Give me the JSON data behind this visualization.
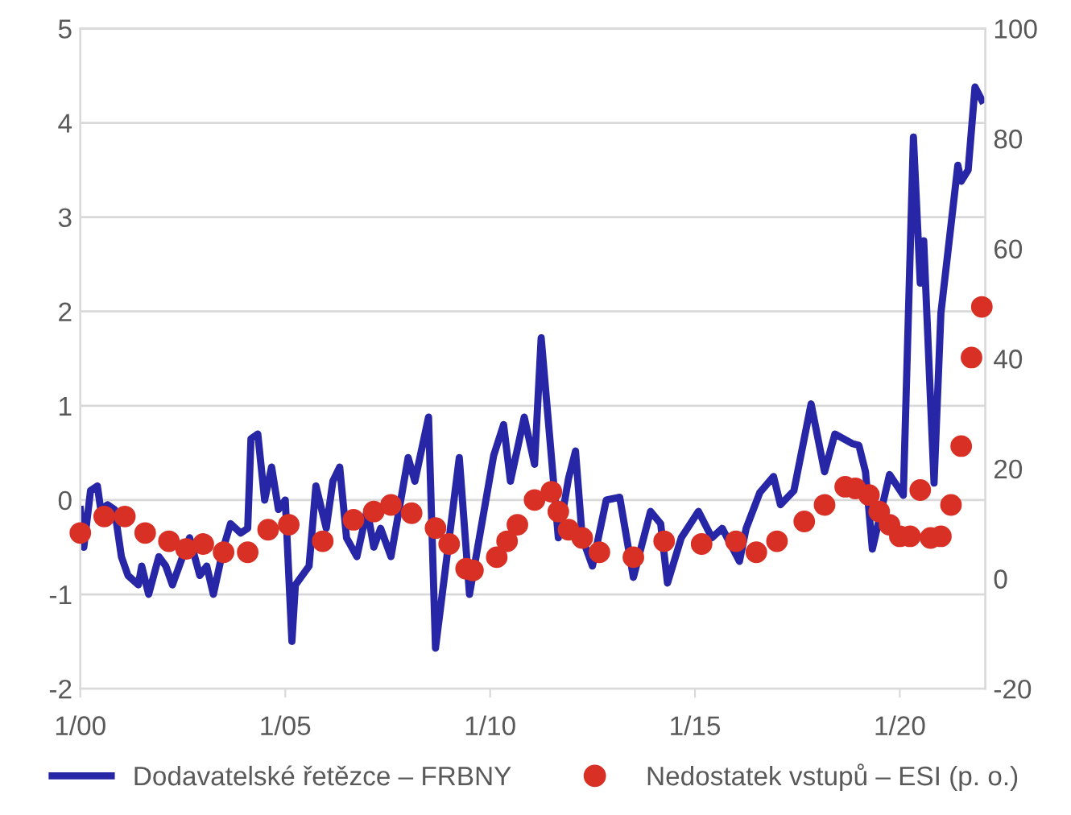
{
  "chart_data": {
    "type": "line",
    "xlim": [
      "2000-01",
      "2022-02"
    ],
    "xticks": [
      {
        "value": "2000-01",
        "label": "1/00"
      },
      {
        "value": "2005-01",
        "label": "1/05"
      },
      {
        "value": "2010-01",
        "label": "1/10"
      },
      {
        "value": "2015-01",
        "label": "1/15"
      },
      {
        "value": "2020-01",
        "label": "1/20"
      }
    ],
    "ylim": [
      -2,
      5
    ],
    "yticks": [
      -2,
      -1,
      0,
      1,
      2,
      3,
      4,
      5
    ],
    "y2lim": [
      -20,
      100
    ],
    "y2ticks": [
      -20,
      0,
      20,
      40,
      60,
      80,
      100
    ],
    "grid": "y",
    "legend": "bottom",
    "series": [
      {
        "name": "Dodavatelské řetězce – FRBNY",
        "color": "#2626a6",
        "line_style": "solid",
        "marker": "none",
        "x": [
          "2000-01",
          "2000-02",
          "2000-04",
          "2000-06",
          "2000-07",
          "2000-09",
          "2000-11",
          "2001-01",
          "2001-03",
          "2001-06",
          "2001-07",
          "2001-09",
          "2001-12",
          "2002-02",
          "2002-04",
          "2002-07",
          "2002-09",
          "2002-12",
          "2003-02",
          "2003-04",
          "2003-07",
          "2003-09",
          "2003-12",
          "2004-02",
          "2004-03",
          "2004-05",
          "2004-07",
          "2004-09",
          "2004-11",
          "2005-01",
          "2005-03",
          "2005-04",
          "2005-08",
          "2005-10",
          "2006-01",
          "2006-03",
          "2006-05",
          "2006-07",
          "2006-10",
          "2007-01",
          "2007-03",
          "2007-05",
          "2007-08",
          "2008-01",
          "2008-03",
          "2008-07",
          "2008-09",
          "2009-04",
          "2009-07",
          "2010-02",
          "2010-05",
          "2010-07",
          "2010-11",
          "2011-02",
          "2011-04",
          "2011-09",
          "2011-12",
          "2012-02",
          "2012-04",
          "2012-07",
          "2012-11",
          "2013-03",
          "2013-07",
          "2013-12",
          "2014-03",
          "2014-05",
          "2014-09",
          "2015-02",
          "2015-06",
          "2015-09",
          "2016-02",
          "2016-04",
          "2016-08",
          "2016-12",
          "2017-02",
          "2017-06",
          "2017-11",
          "2018-03",
          "2018-06",
          "2018-11",
          "2019-01",
          "2019-03",
          "2019-05",
          "2019-10",
          "2020-02",
          "2020-05",
          "2020-07",
          "2020-08",
          "2020-11",
          "2021-01",
          "2021-06",
          "2021-07",
          "2021-09",
          "2021-11",
          "2022-01"
        ],
        "values": [
          -0.1,
          -0.5,
          0.1,
          0.15,
          -0.1,
          -0.05,
          -0.1,
          -0.6,
          -0.8,
          -0.9,
          -0.7,
          -1.0,
          -0.6,
          -0.7,
          -0.9,
          -0.6,
          -0.4,
          -0.8,
          -0.7,
          -1.0,
          -0.5,
          -0.25,
          -0.35,
          -0.3,
          0.65,
          0.7,
          0.0,
          0.35,
          -0.1,
          0.0,
          -1.5,
          -0.9,
          -0.7,
          0.15,
          -0.3,
          0.2,
          0.35,
          -0.4,
          -0.6,
          -0.1,
          -0.5,
          -0.3,
          -0.6,
          0.45,
          0.2,
          0.88,
          -1.57,
          0.45,
          -1.0,
          0.47,
          0.8,
          0.2,
          0.88,
          0.38,
          1.72,
          -0.4,
          0.23,
          0.52,
          -0.4,
          -0.7,
          0.0,
          0.03,
          -0.82,
          -0.12,
          -0.25,
          -0.88,
          -0.4,
          -0.12,
          -0.4,
          -0.3,
          -0.65,
          -0.3,
          0.08,
          0.25,
          -0.05,
          0.1,
          1.02,
          0.3,
          0.7,
          0.6,
          0.58,
          0.3,
          -0.52,
          0.27,
          0.05,
          3.85,
          2.3,
          2.75,
          0.18,
          1.98,
          3.55,
          3.38,
          3.5,
          4.38,
          4.24
        ]
      },
      {
        "name": "Nedostatek vstupů – ESI (p. o.)",
        "type": "scatter",
        "axis": "y2",
        "color": "#d93025",
        "marker": "circle",
        "x": [
          "2000-01",
          "2000-08",
          "2001-02",
          "2001-08",
          "2002-03",
          "2002-08",
          "2003-01",
          "2003-07",
          "2004-02",
          "2004-08",
          "2005-02",
          "2005-12",
          "2006-09",
          "2007-03",
          "2007-08",
          "2008-02",
          "2008-09",
          "2009-01",
          "2009-06",
          "2009-08",
          "2010-03",
          "2010-06",
          "2010-09",
          "2011-02",
          "2011-07",
          "2011-09",
          "2011-12",
          "2012-04",
          "2012-09",
          "2013-07",
          "2014-04",
          "2015-03",
          "2016-01",
          "2016-07",
          "2017-01",
          "2017-09",
          "2018-03",
          "2018-09",
          "2018-12",
          "2019-04",
          "2019-07",
          "2019-10",
          "2020-01",
          "2020-04",
          "2020-07",
          "2020-10",
          "2021-01",
          "2021-04",
          "2021-07",
          "2021-10",
          "2022-01"
        ],
        "values": [
          8.3,
          11.3,
          11.3,
          8.3,
          6.8,
          5.4,
          6.3,
          4.8,
          4.8,
          8.9,
          9.8,
          6.8,
          10.7,
          12.2,
          13.4,
          11.9,
          9.2,
          6.3,
          1.8,
          1.5,
          3.9,
          6.8,
          9.8,
          14.3,
          15.8,
          12.2,
          8.9,
          7.4,
          4.8,
          3.9,
          6.8,
          6.3,
          6.8,
          4.8,
          6.8,
          10.4,
          13.4,
          16.7,
          16.4,
          15.2,
          12.2,
          9.8,
          7.7,
          7.7,
          16.1,
          7.4,
          7.7,
          13.4,
          24.1,
          40.2,
          49.4
        ]
      }
    ]
  }
}
